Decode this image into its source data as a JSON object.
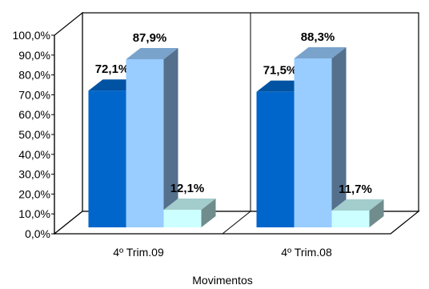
{
  "chart_data": {
    "type": "bar",
    "categories": [
      "4º Trim.09",
      "4º Trim.08"
    ],
    "series": [
      {
        "values": [
          72.1,
          71.5
        ],
        "labels": [
          "72,1%",
          "71,5%"
        ],
        "color": "#0066cc"
      },
      {
        "values": [
          87.9,
          88.3
        ],
        "labels": [
          "87,9%",
          "88,3%"
        ],
        "color": "#99ccff"
      },
      {
        "values": [
          12.1,
          11.7
        ],
        "labels": [
          "12,1%",
          "11,7%"
        ],
        "color": "#ccffff"
      }
    ],
    "title": "",
    "xlabel": "Movimentos",
    "ylabel": "",
    "ylim": [
      0,
      100
    ],
    "yticks": [
      "0,0%",
      "10,0%",
      "20,0%",
      "30,0%",
      "40,0%",
      "50,0%",
      "60,0%",
      "70,0%",
      "80,0%",
      "90,0%",
      "100,0%"
    ],
    "three_d": true,
    "grid": false,
    "legend": "none"
  }
}
